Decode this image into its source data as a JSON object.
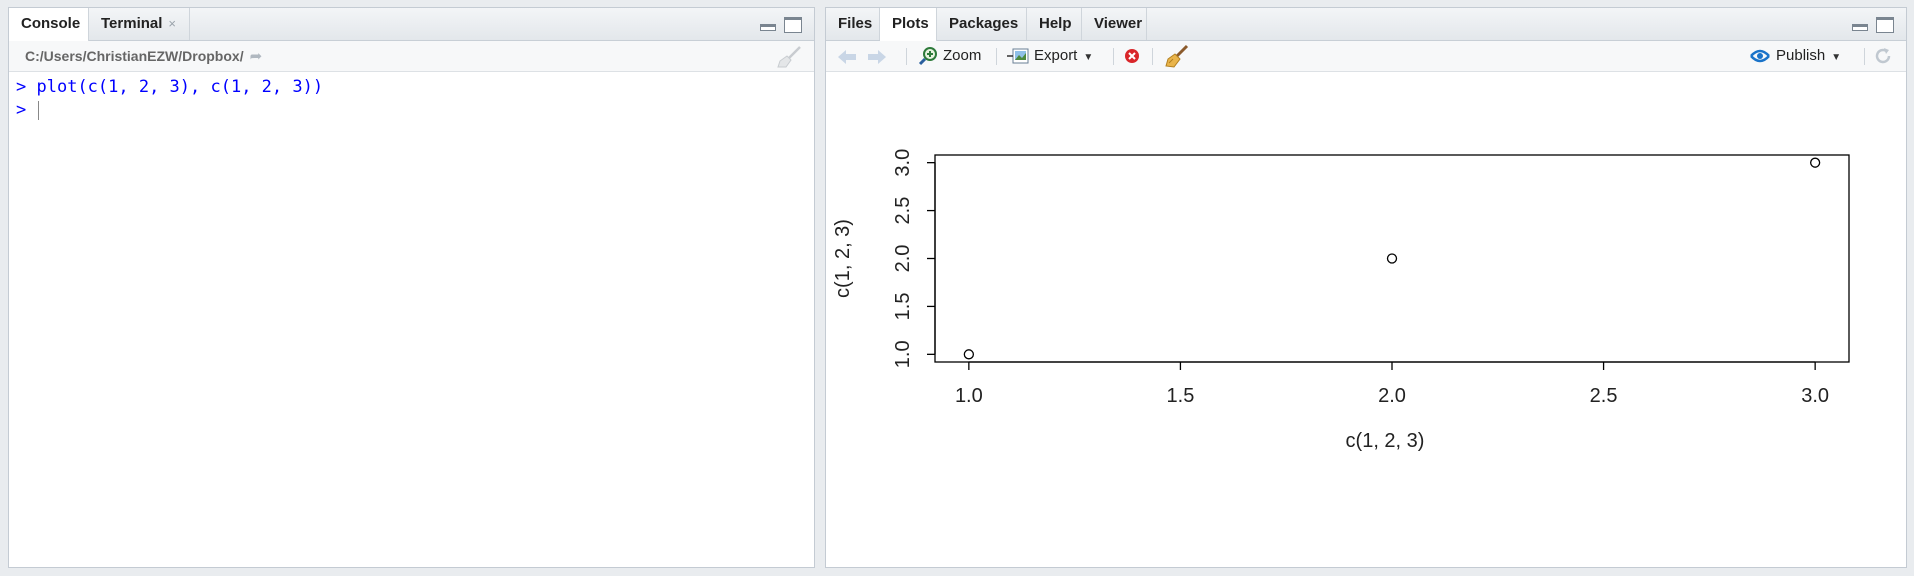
{
  "left_pane": {
    "tabs": [
      {
        "label": "Console"
      },
      {
        "label": "Terminal",
        "close": "×"
      }
    ],
    "path": "C:/Users/ChristianEZW/Dropbox/",
    "console": {
      "lines": [
        {
          "prompt": ">",
          "text": "plot(c(1, 2, 3), c(1, 2, 3))"
        },
        {
          "prompt": ">",
          "text": ""
        }
      ]
    }
  },
  "right_pane": {
    "tabs": [
      {
        "label": "Files"
      },
      {
        "label": "Plots"
      },
      {
        "label": "Packages"
      },
      {
        "label": "Help"
      },
      {
        "label": "Viewer"
      }
    ],
    "toolbar": {
      "zoom_label": "Zoom",
      "export_label": "Export",
      "publish_label": "Publish"
    }
  },
  "icons": {
    "back": "arrow-left-icon",
    "forward": "arrow-right-icon",
    "zoom": "magnifier-icon",
    "export": "export-icon",
    "remove": "remove-plot-icon",
    "clear": "broom-icon",
    "publish": "publish-icon",
    "refresh": "refresh-icon"
  },
  "colors": {
    "console_text": "#0000ff",
    "accent": "#1a73c9",
    "remove_red": "#d9262a"
  },
  "chart_data": {
    "type": "scatter",
    "x": [
      1,
      2,
      3
    ],
    "y": [
      1,
      2,
      3
    ],
    "xlabel": "c(1, 2, 3)",
    "ylabel": "c(1, 2, 3)",
    "xlim": [
      0.92,
      3.08
    ],
    "ylim": [
      0.92,
      3.08
    ],
    "xticks": [
      "1.0",
      "1.5",
      "2.0",
      "2.5",
      "3.0"
    ],
    "yticks": [
      "1.0",
      "1.5",
      "2.0",
      "2.5",
      "3.0"
    ],
    "marker": "open-circle",
    "grid": false,
    "legend": false
  }
}
